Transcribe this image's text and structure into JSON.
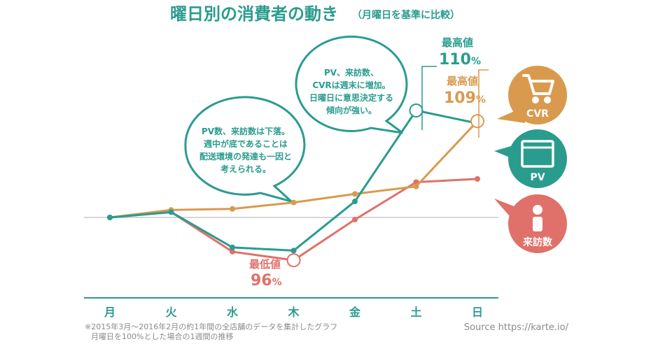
{
  "colors": {
    "teal": "#2a9c8e",
    "orange": "#d99a4e",
    "red": "#e0706a",
    "baseline": "#bdbdbd",
    "text_gray": "#8a8a8a"
  },
  "chart_data": {
    "type": "line",
    "title": "曜日別の消費者の動き",
    "subtitle": "（月曜日を基準に比較）",
    "categories": [
      "月",
      "火",
      "水",
      "木",
      "金",
      "土",
      "日"
    ],
    "baseline": 100,
    "ylim": [
      94,
      112
    ],
    "grid": false,
    "legend": "right",
    "series": [
      {
        "name": "CVR",
        "color": "#d99a4e",
        "values": [
          100,
          100.7,
          100.8,
          101.4,
          102.2,
          102.9,
          109.0
        ],
        "icon": "cart-icon"
      },
      {
        "name": "PV",
        "color": "#2a9c8e",
        "values": [
          100,
          100.5,
          97.2,
          96.9,
          101.5,
          110.0,
          108.8
        ],
        "icon": "browser-window-icon"
      },
      {
        "name": "来訪数",
        "color": "#e0706a",
        "values": [
          100,
          100.5,
          96.8,
          96.0,
          99.8,
          103.3,
          103.6
        ],
        "icon": "person-icon"
      }
    ],
    "annotations": {
      "max_pv": {
        "label": "最高値",
        "value": "110",
        "unit": "%"
      },
      "max_cvr": {
        "label": "最高値",
        "value": "109",
        "unit": "%"
      },
      "min_visits": {
        "label": "最低値",
        "value": "96",
        "unit": "%"
      }
    },
    "bubbles": {
      "left": [
        "PV数、来訪数は下落。",
        "週中が底であることは",
        "配送環境の発達も一因と",
        "考えられる。"
      ],
      "right": [
        "PV、来訪数、",
        "CVRは週末に増加。",
        "日曜日に意思決定する",
        "傾向が強い。"
      ]
    },
    "note": [
      "※2015年3月〜2016年2月の約1年間の全店舗のデータを集計したグラフ",
      "月曜日を100%とした場合の1週間の推移"
    ],
    "source": "Source https://karte.io/"
  }
}
